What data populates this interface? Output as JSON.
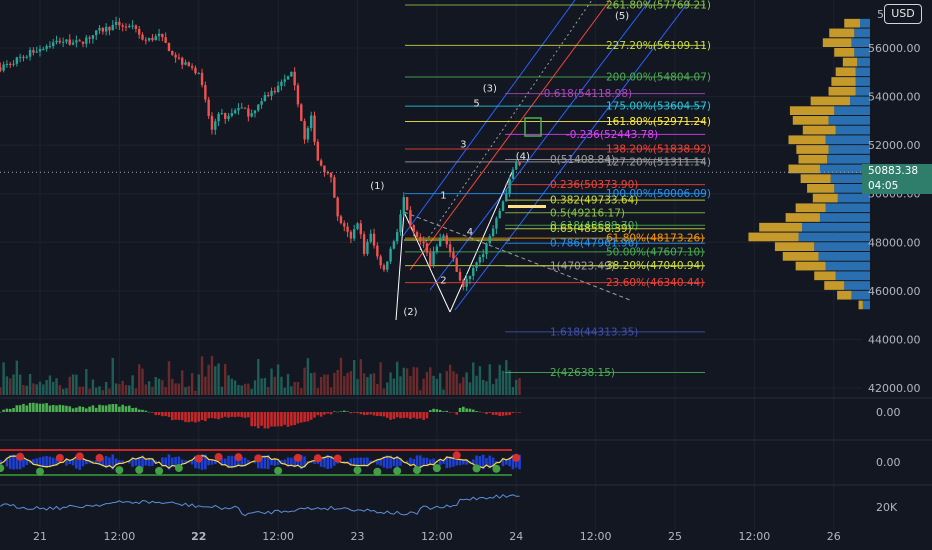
{
  "header": {
    "currency_button": "USD"
  },
  "last_price_tag": {
    "price": "50883.38",
    "countdown": "04:05"
  },
  "chart_data": {
    "type": "candlestick",
    "price_axis": {
      "range": [
        41800,
        57400
      ],
      "ticks": [
        {
          "value": 42000,
          "label": "42000.00"
        },
        {
          "value": 44000,
          "label": "44000.00"
        },
        {
          "value": 46000,
          "label": "46000.00"
        },
        {
          "value": 48000,
          "label": "48000.00"
        },
        {
          "value": 50000,
          "label": "50000.00"
        },
        {
          "value": 52000,
          "label": "52000.00"
        },
        {
          "value": 54000,
          "label": "54000.00"
        },
        {
          "value": 56000,
          "label": "56000.00"
        }
      ],
      "top_clipped_label": "5"
    },
    "time_axis": {
      "ticks": [
        {
          "t": 0,
          "label": "21",
          "bold": false
        },
        {
          "t": 12,
          "label": "12:00",
          "bold": false
        },
        {
          "t": 24,
          "label": "22",
          "bold": true
        },
        {
          "t": 36,
          "label": "12:00",
          "bold": false
        },
        {
          "t": 48,
          "label": "23",
          "bold": false
        },
        {
          "t": 60,
          "label": "12:00",
          "bold": false
        },
        {
          "t": 72,
          "label": "24",
          "bold": false
        },
        {
          "t": 84,
          "label": "12:00",
          "bold": false
        },
        {
          "t": 96,
          "label": "25",
          "bold": false
        },
        {
          "t": 108,
          "label": "12:00",
          "bold": false
        },
        {
          "t": 120,
          "label": "26",
          "bold": false
        }
      ]
    },
    "price_path": [
      [
        -6,
        55200
      ],
      [
        -3,
        55600
      ],
      [
        0,
        56000
      ],
      [
        3,
        56300
      ],
      [
        6,
        56200
      ],
      [
        9,
        56700
      ],
      [
        12,
        57000
      ],
      [
        14,
        56800
      ],
      [
        16,
        56300
      ],
      [
        18,
        56500
      ],
      [
        20,
        55800
      ],
      [
        22,
        55300
      ],
      [
        24,
        55000
      ],
      [
        25,
        53800
      ],
      [
        26,
        52600
      ],
      [
        27,
        53400
      ],
      [
        28,
        53000
      ],
      [
        30,
        53600
      ],
      [
        32,
        53200
      ],
      [
        34,
        54000
      ],
      [
        36,
        54400
      ],
      [
        38,
        54900
      ],
      [
        39,
        53800
      ],
      [
        40,
        52200
      ],
      [
        41,
        53100
      ],
      [
        42,
        51400
      ],
      [
        44,
        50600
      ],
      [
        45,
        49000
      ],
      [
        46,
        48600
      ],
      [
        47,
        48100
      ],
      [
        48,
        48900
      ],
      [
        49,
        47600
      ],
      [
        50,
        48300
      ],
      [
        51,
        47400
      ],
      [
        52,
        46900
      ],
      [
        53,
        47700
      ],
      [
        54,
        48500
      ],
      [
        55,
        49800
      ],
      [
        56,
        48600
      ],
      [
        57,
        48100
      ],
      [
        58,
        47900
      ],
      [
        59,
        47200
      ],
      [
        60,
        47900
      ],
      [
        61,
        48300
      ],
      [
        62,
        47600
      ],
      [
        63,
        46900
      ],
      [
        64,
        46100
      ],
      [
        65,
        46700
      ],
      [
        66,
        47300
      ],
      [
        67,
        47600
      ],
      [
        68,
        48200
      ],
      [
        69,
        48900
      ],
      [
        70,
        49700
      ],
      [
        71,
        50500
      ],
      [
        72,
        51400
      ],
      [
        73,
        50900
      ],
      [
        74,
        50880
      ]
    ],
    "current_price": 50883.38,
    "fib_levels": [
      {
        "text": "261.80%(57769.21)",
        "price": 57769,
        "color": "#8bc34a"
      },
      {
        "text": "227.20%(56109.11)",
        "price": 56109,
        "color": "#cddc39"
      },
      {
        "text": "200.00%(54804.07)",
        "price": 54804,
        "color": "#4caf50"
      },
      {
        "text": "-0.618(54118.98)",
        "price": 54119,
        "color": "#ab47bc"
      },
      {
        "text": "175.00%(53604.57)",
        "price": 53605,
        "color": "#26c6da"
      },
      {
        "text": "161.80%(52971.24)",
        "price": 52971,
        "color": "#ffeb3b"
      },
      {
        "text": "-0.236(52443.78)",
        "price": 52444,
        "color": "#e040fb"
      },
      {
        "text": "138.20%(51838.92)",
        "price": 51839,
        "color": "#f44336"
      },
      {
        "text": "0(51408.84)",
        "price": 51409,
        "color": "#9e9e9e"
      },
      {
        "text": "127.20%(51311.14)",
        "price": 51311,
        "color": "#9e9e9e"
      },
      {
        "text": "0.236(50373.90)",
        "price": 50374,
        "color": "#f44336"
      },
      {
        "text": "100.00%(50006.09)",
        "price": 50006,
        "color": "#2196f3"
      },
      {
        "text": "0.382(49733.64)",
        "price": 49734,
        "color": "#cddc39"
      },
      {
        "text": "0.5(49216.17)",
        "price": 49216,
        "color": "#8bc34a"
      },
      {
        "text": "0.618(48698.70)",
        "price": 48699,
        "color": "#4caf50"
      },
      {
        "text": "0.65(48558.39)",
        "price": 48558,
        "color": "#cddc39"
      },
      {
        "text": "61.80%(48173.26)",
        "price": 48173,
        "color": "#ff9800"
      },
      {
        "text": "0.786(47961.96)",
        "price": 47962,
        "color": "#2196f3"
      },
      {
        "text": "50.00%(47607.10)",
        "price": 47607,
        "color": "#4caf50"
      },
      {
        "text": "1(47023.49)",
        "price": 47023,
        "color": "#9e9e9e"
      },
      {
        "text": "38.20%(47040.94)",
        "price": 47041,
        "color": "#cddc39"
      },
      {
        "text": "23.60%(46340.44)",
        "price": 46340,
        "color": "#f44336"
      },
      {
        "text": "1.618(44313.35)",
        "price": 44313,
        "color": "#3f51b5"
      },
      {
        "text": "2(42638.15)",
        "price": 42638,
        "color": "#4caf50"
      }
    ],
    "wave_labels": [
      {
        "text": "(1)",
        "t": 51,
        "price": 50200
      },
      {
        "text": "(2)",
        "t": 56,
        "price": 45000
      },
      {
        "text": "(3)",
        "t": 68,
        "price": 54200
      },
      {
        "text": "(4)",
        "t": 73,
        "price": 51400
      },
      {
        "text": "(5)",
        "t": 88,
        "price": 57200
      },
      {
        "text": "1",
        "t": 61,
        "price": 49800
      },
      {
        "text": "2",
        "t": 61,
        "price": 46300
      },
      {
        "text": "3",
        "t": 64,
        "price": 51900
      },
      {
        "text": "4",
        "t": 65,
        "price": 48300
      },
      {
        "text": "5",
        "t": 66,
        "price": 53600
      }
    ],
    "volume_profile": [
      {
        "price": 57000,
        "buy": 0.22,
        "sell": 0.14
      },
      {
        "price": 56600,
        "buy": 0.35,
        "sell": 0.22
      },
      {
        "price": 56200,
        "buy": 0.4,
        "sell": 0.26
      },
      {
        "price": 55800,
        "buy": 0.28,
        "sell": 0.22
      },
      {
        "price": 55400,
        "buy": 0.2,
        "sell": 0.18
      },
      {
        "price": 55000,
        "buy": 0.28,
        "sell": 0.2
      },
      {
        "price": 54600,
        "buy": 0.34,
        "sell": 0.2
      },
      {
        "price": 54200,
        "buy": 0.38,
        "sell": 0.2
      },
      {
        "price": 53800,
        "buy": 0.55,
        "sell": 0.28
      },
      {
        "price": 53400,
        "buy": 0.62,
        "sell": 0.5
      },
      {
        "price": 53000,
        "buy": 0.5,
        "sell": 0.58
      },
      {
        "price": 52600,
        "buy": 0.46,
        "sell": 0.48
      },
      {
        "price": 52200,
        "buy": 0.52,
        "sell": 0.62
      },
      {
        "price": 51800,
        "buy": 0.45,
        "sell": 0.58
      },
      {
        "price": 51400,
        "buy": 0.4,
        "sell": 0.6
      },
      {
        "price": 51000,
        "buy": 0.44,
        "sell": 0.7
      },
      {
        "price": 50600,
        "buy": 0.42,
        "sell": 0.55
      },
      {
        "price": 50200,
        "buy": 0.38,
        "sell": 0.5
      },
      {
        "price": 49800,
        "buy": 0.35,
        "sell": 0.45
      },
      {
        "price": 49400,
        "buy": 0.42,
        "sell": 0.62
      },
      {
        "price": 49000,
        "buy": 0.48,
        "sell": 0.7
      },
      {
        "price": 48600,
        "buy": 0.6,
        "sell": 0.95
      },
      {
        "price": 48200,
        "buy": 0.7,
        "sell": 1.0
      },
      {
        "price": 47800,
        "buy": 0.55,
        "sell": 0.78
      },
      {
        "price": 47400,
        "buy": 0.5,
        "sell": 0.72
      },
      {
        "price": 47000,
        "buy": 0.42,
        "sell": 0.62
      },
      {
        "price": 46600,
        "buy": 0.3,
        "sell": 0.48
      },
      {
        "price": 46200,
        "buy": 0.28,
        "sell": 0.36
      },
      {
        "price": 45800,
        "buy": 0.2,
        "sell": 0.26
      },
      {
        "price": 45400,
        "buy": 0.06,
        "sell": 0.1
      }
    ],
    "oscillator_1": {
      "zero_label": "0.00"
    },
    "oscillator_2": {
      "zero_label": "0.00"
    },
    "oscillator_3": {
      "label": "20K"
    }
  }
}
